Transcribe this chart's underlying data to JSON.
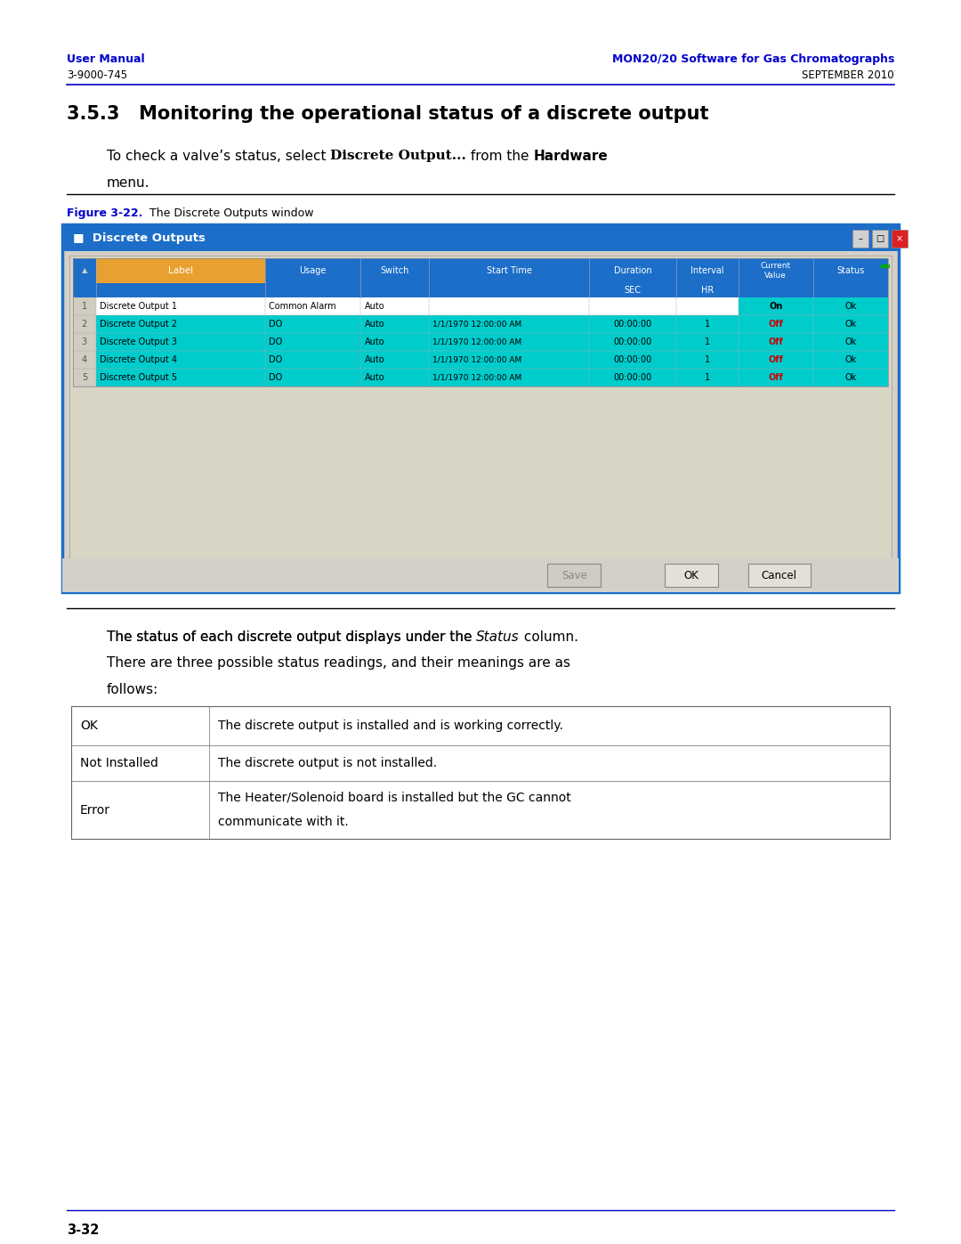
{
  "page_width": 10.8,
  "page_height": 13.97,
  "bg_color": "#ffffff",
  "header_left_bold": "User Manual",
  "header_left_plain": "3-9000-745",
  "header_right_bold": "MON20/20 Software for Gas Chromatographs",
  "header_right_plain": "SEPTEMBER 2010",
  "header_color": "#0000cc",
  "header_line_color": "#0000cc",
  "section_title": "3.5.3   Monitoring the operational status of a discrete output",
  "figure_label_bold": "Figure 3-22.",
  "figure_label_plain": "  The Discrete Outputs window",
  "figure_label_color": "#0000cc",
  "window_title": "Discrete Outputs",
  "window_title_bar_color": "#1c6ec8",
  "window_bg_color": "#d4d0c8",
  "window_header_bg": "#1c6ec8",
  "col_header_bg": "#e8a030",
  "row_cyan_bg": "#00cccc",
  "rows": [
    {
      "num": "1",
      "label": "Discrete Output 1",
      "usage": "Common Alarm",
      "switch": "Auto",
      "start": "",
      "duration": "",
      "interval": "",
      "current": "On",
      "status": "Ok",
      "selected": true
    },
    {
      "num": "2",
      "label": "Discrete Output 2",
      "usage": "DO",
      "switch": "Auto",
      "start": "1/1/1970 12:00:00 AM",
      "duration": "00:00:00",
      "interval": "1",
      "current": "Off",
      "status": "Ok",
      "selected": false
    },
    {
      "num": "3",
      "label": "Discrete Output 3",
      "usage": "DO",
      "switch": "Auto",
      "start": "1/1/1970 12:00:00 AM",
      "duration": "00:00:00",
      "interval": "1",
      "current": "Off",
      "status": "Ok",
      "selected": false
    },
    {
      "num": "4",
      "label": "Discrete Output 4",
      "usage": "DO",
      "switch": "Auto",
      "start": "1/1/1970 12:00:00 AM",
      "duration": "00:00:00",
      "interval": "1",
      "current": "Off",
      "status": "Ok",
      "selected": false
    },
    {
      "num": "5",
      "label": "Discrete Output 5",
      "usage": "DO",
      "switch": "Auto",
      "start": "1/1/1970 12:00:00 AM",
      "duration": "00:00:00",
      "interval": "1",
      "current": "Off",
      "status": "Ok",
      "selected": false
    }
  ],
  "status_table": [
    {
      "term": "OK",
      "desc": "The discrete output is installed and is working correctly."
    },
    {
      "term": "Not Installed",
      "desc": "The discrete output is not installed."
    },
    {
      "term": "Error",
      "desc": "The Heater/Solenoid board is installed but the GC cannot\ncommunicate with it."
    }
  ],
  "footer_text": "3-32",
  "footer_line_color": "#0000cc"
}
